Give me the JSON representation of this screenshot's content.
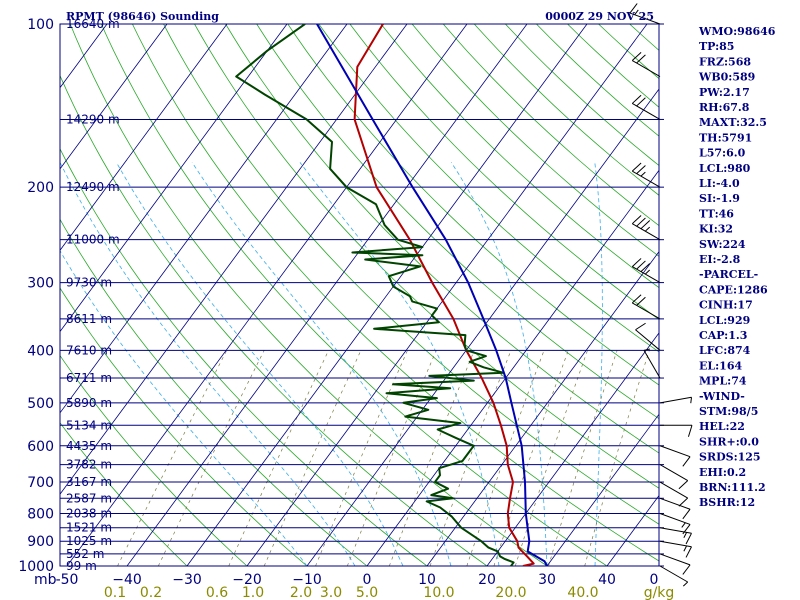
{
  "chart_data": {
    "type": "line",
    "title_left": "RPMT (98646) Sounding",
    "title_right": "0000Z 29 NOV 25",
    "pressure_axis_unit": "mb",
    "pressure_ticks": [
      100,
      200,
      300,
      400,
      500,
      600,
      700,
      800,
      900,
      1000
    ],
    "temperature_ticks": [
      -50,
      -40,
      -30,
      -20,
      -10,
      0,
      10,
      20,
      30,
      40
    ],
    "temperature_tick_labels": [
      "-50",
      "−40",
      "−30",
      "−20",
      "−10",
      "0",
      "10",
      "20",
      "30",
      "40"
    ],
    "xlim": [
      -50,
      50
    ],
    "ylim": [
      100,
      1000
    ],
    "y_scale": "log",
    "mixing_ratio_unit": "g/kg",
    "mixing_ratio_labels": [
      {
        "text": "0.1",
        "t": -42
      },
      {
        "text": "0.2",
        "t": -36
      },
      {
        "text": "0.6",
        "t": -25
      },
      {
        "text": "1.0",
        "t": -19
      },
      {
        "text": "2.0",
        "t": -11
      },
      {
        "text": "3.0",
        "t": -6
      },
      {
        "text": "5.0",
        "t": 0
      },
      {
        "text": "10.0",
        "t": 12
      },
      {
        "text": "20.0",
        "t": 24
      },
      {
        "text": "40.0",
        "t": 36
      }
    ],
    "height_levels": [
      {
        "label": "16640 m",
        "p": 100
      },
      {
        "label": "14290 m",
        "p": 150
      },
      {
        "label": "12490 m",
        "p": 200
      },
      {
        "label": "11000 m",
        "p": 250
      },
      {
        "label": "9730 m",
        "p": 300
      },
      {
        "label": "8611 m",
        "p": 350
      },
      {
        "label": "7610 m",
        "p": 400
      },
      {
        "label": "6711 m",
        "p": 450
      },
      {
        "label": "5890 m",
        "p": 500
      },
      {
        "label": "5134 m",
        "p": 550
      },
      {
        "label": "4435 m",
        "p": 600
      },
      {
        "label": "3782 m",
        "p": 650
      },
      {
        "label": "3167 m",
        "p": 700
      },
      {
        "label": "2587 m",
        "p": 750
      },
      {
        "label": "2038 m",
        "p": 800
      },
      {
        "label": "1521 m",
        "p": 850
      },
      {
        "label": "1025 m",
        "p": 900
      },
      {
        "label": "552 m",
        "p": 950
      },
      {
        "label": "99 m",
        "p": 1000
      }
    ],
    "series": [
      {
        "key": "temperature",
        "color": "#b40000",
        "points": [
          [
            1000,
            26
          ],
          [
            990,
            27.5
          ],
          [
            960,
            25.5
          ],
          [
            925,
            23
          ],
          [
            900,
            22
          ],
          [
            850,
            19
          ],
          [
            800,
            17
          ],
          [
            750,
            15.5
          ],
          [
            700,
            14
          ],
          [
            650,
            11
          ],
          [
            600,
            8.5
          ],
          [
            550,
            5
          ],
          [
            500,
            1
          ],
          [
            450,
            -4
          ],
          [
            400,
            -10
          ],
          [
            350,
            -16
          ],
          [
            300,
            -24
          ],
          [
            250,
            -33
          ],
          [
            200,
            -45
          ],
          [
            150,
            -57
          ],
          [
            120,
            -63
          ],
          [
            100,
            -64
          ]
        ]
      },
      {
        "key": "dewpoint",
        "color": "#004400",
        "points": [
          [
            1000,
            24
          ],
          [
            985,
            24
          ],
          [
            970,
            22
          ],
          [
            960,
            21
          ],
          [
            940,
            20
          ],
          [
            925,
            18
          ],
          [
            900,
            16
          ],
          [
            850,
            11
          ],
          [
            810,
            8
          ],
          [
            780,
            5
          ],
          [
            760,
            2
          ],
          [
            750,
            6
          ],
          [
            740,
            2
          ],
          [
            720,
            4
          ],
          [
            700,
            1
          ],
          [
            680,
            1
          ],
          [
            660,
            0
          ],
          [
            640,
            3
          ],
          [
            620,
            3
          ],
          [
            600,
            3
          ],
          [
            580,
            -1
          ],
          [
            560,
            -5
          ],
          [
            545,
            -2
          ],
          [
            530,
            -12
          ],
          [
            515,
            -9
          ],
          [
            500,
            -14
          ],
          [
            490,
            -9
          ],
          [
            480,
            -18
          ],
          [
            470,
            -8
          ],
          [
            462,
            -18
          ],
          [
            455,
            -5
          ],
          [
            446,
            -13
          ],
          [
            440,
            -1
          ],
          [
            430,
            -5
          ],
          [
            420,
            -8
          ],
          [
            410,
            -6
          ],
          [
            400,
            -10
          ],
          [
            390,
            -11
          ],
          [
            375,
            -12
          ],
          [
            365,
            -28
          ],
          [
            355,
            -18
          ],
          [
            345,
            -20
          ],
          [
            335,
            -20
          ],
          [
            325,
            -25
          ],
          [
            318,
            -26
          ],
          [
            305,
            -30
          ],
          [
            292,
            -32
          ],
          [
            280,
            -28
          ],
          [
            272,
            -38
          ],
          [
            267,
            -29
          ],
          [
            264,
            -41
          ],
          [
            258,
            -30
          ],
          [
            250,
            -35
          ],
          [
            235,
            -39
          ],
          [
            215,
            -43
          ],
          [
            200,
            -50
          ],
          [
            185,
            -55
          ],
          [
            165,
            -58
          ],
          [
            150,
            -65
          ],
          [
            135,
            -75
          ],
          [
            125,
            -82
          ],
          [
            112,
            -80
          ],
          [
            100,
            -77
          ]
        ]
      },
      {
        "key": "parcel",
        "color": "#0000b4",
        "points": [
          [
            1000,
            30
          ],
          [
            980,
            29
          ],
          [
            940,
            25
          ],
          [
            900,
            24
          ],
          [
            800,
            20
          ],
          [
            700,
            16
          ],
          [
            600,
            11
          ],
          [
            500,
            4
          ],
          [
            450,
            0
          ],
          [
            400,
            -5
          ],
          [
            350,
            -11
          ],
          [
            300,
            -18
          ],
          [
            250,
            -27
          ],
          [
            200,
            -39
          ],
          [
            150,
            -54
          ],
          [
            100,
            -75
          ]
        ]
      }
    ],
    "wind_barbs": [
      {
        "p": 1000,
        "dir": 120,
        "kt": 5
      },
      {
        "p": 950,
        "dir": 110,
        "kt": 10
      },
      {
        "p": 900,
        "dir": 100,
        "kt": 15
      },
      {
        "p": 850,
        "dir": 100,
        "kt": 15
      },
      {
        "p": 800,
        "dir": 110,
        "kt": 15
      },
      {
        "p": 750,
        "dir": 110,
        "kt": 10
      },
      {
        "p": 700,
        "dir": 120,
        "kt": 10
      },
      {
        "p": 650,
        "dir": 120,
        "kt": 10
      },
      {
        "p": 600,
        "dir": 110,
        "kt": 10
      },
      {
        "p": 550,
        "dir": 90,
        "kt": 10
      },
      {
        "p": 500,
        "dir": 80,
        "kt": 5
      },
      {
        "p": 450,
        "dir": 330,
        "kt": 5
      },
      {
        "p": 400,
        "dir": 310,
        "kt": 10
      },
      {
        "p": 350,
        "dir": 300,
        "kt": 20
      },
      {
        "p": 300,
        "dir": 300,
        "kt": 35
      },
      {
        "p": 250,
        "dir": 300,
        "kt": 35
      },
      {
        "p": 200,
        "dir": 300,
        "kt": 25
      },
      {
        "p": 150,
        "dir": 300,
        "kt": 20
      },
      {
        "p": 125,
        "dir": 300,
        "kt": 20
      },
      {
        "p": 100,
        "dir": 290,
        "kt": 15
      }
    ],
    "indices": [
      "WMO:98646",
      "TP:85",
      "FRZ:568",
      "WB0:589",
      "PW:2.17",
      "RH:67.8",
      "MAXT:32.5",
      "TH:5791",
      "L57:6.0",
      "LCL:980",
      "LI:-4.0",
      "SI:-1.9",
      "TT:46",
      "KI:32",
      "SW:224",
      "EI:-2.8",
      "-PARCEL-",
      "CAPE:1286",
      "CINH:17",
      "LCL:929",
      "CAP:1.3",
      "LFC:874",
      "EL:164",
      "MPL:74",
      "-WIND-",
      "STM:98/5",
      "HEL:22",
      "SHR+:0.0",
      "SRDS:125",
      "EHI:0.2",
      "BRN:111.2",
      "BSHR:12"
    ]
  }
}
